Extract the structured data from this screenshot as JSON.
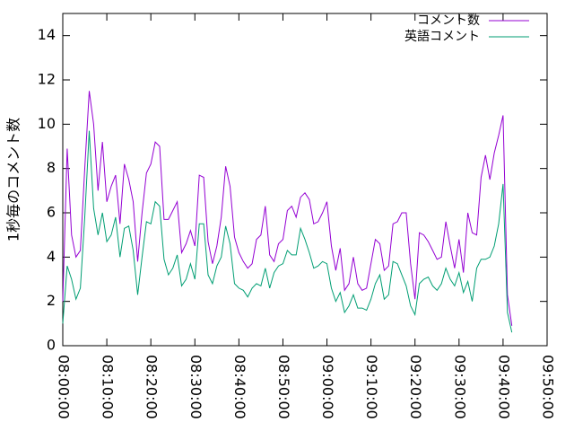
{
  "chart_data": {
    "type": "line",
    "ylabel": "1秒毎のコメント数",
    "x": [
      "08:00:00",
      "08:01:00",
      "08:02:00",
      "08:03:00",
      "08:04:00",
      "08:05:00",
      "08:06:00",
      "08:07:00",
      "08:08:00",
      "08:09:00",
      "08:10:00",
      "08:11:00",
      "08:12:00",
      "08:13:00",
      "08:14:00",
      "08:15:00",
      "08:16:00",
      "08:17:00",
      "08:18:00",
      "08:19:00",
      "08:20:00",
      "08:21:00",
      "08:22:00",
      "08:23:00",
      "08:24:00",
      "08:25:00",
      "08:26:00",
      "08:27:00",
      "08:28:00",
      "08:29:00",
      "08:30:00",
      "08:31:00",
      "08:32:00",
      "08:33:00",
      "08:34:00",
      "08:35:00",
      "08:36:00",
      "08:37:00",
      "08:38:00",
      "08:39:00",
      "08:40:00",
      "08:41:00",
      "08:42:00",
      "08:43:00",
      "08:44:00",
      "08:45:00",
      "08:46:00",
      "08:47:00",
      "08:48:00",
      "08:49:00",
      "08:50:00",
      "08:51:00",
      "08:52:00",
      "08:53:00",
      "08:54:00",
      "08:55:00",
      "08:56:00",
      "08:57:00",
      "08:58:00",
      "08:59:00",
      "09:00:00",
      "09:01:00",
      "09:02:00",
      "09:03:00",
      "09:04:00",
      "09:05:00",
      "09:06:00",
      "09:07:00",
      "09:08:00",
      "09:09:00",
      "09:10:00",
      "09:11:00",
      "09:12:00",
      "09:13:00",
      "09:14:00",
      "09:15:00",
      "09:16:00",
      "09:17:00",
      "09:18:00",
      "09:19:00",
      "09:20:00",
      "09:21:00",
      "09:22:00",
      "09:23:00",
      "09:24:00",
      "09:25:00",
      "09:26:00",
      "09:27:00",
      "09:28:00",
      "09:29:00",
      "09:30:00",
      "09:31:00",
      "09:32:00",
      "09:33:00",
      "09:34:00",
      "09:35:00",
      "09:36:00",
      "09:37:00",
      "09:38:00",
      "09:39:00",
      "09:40:00",
      "09:41:00",
      "09:42:00"
    ],
    "series": [
      {
        "name": "コメント数",
        "color": "#9400d3",
        "values": [
          2.0,
          8.9,
          5.0,
          4.0,
          4.3,
          8.0,
          11.5,
          10.0,
          7.0,
          9.2,
          6.5,
          7.2,
          7.7,
          5.5,
          8.2,
          7.5,
          6.5,
          3.8,
          6.0,
          7.8,
          8.2,
          9.2,
          9.0,
          5.7,
          5.7,
          6.1,
          6.5,
          4.2,
          4.6,
          5.2,
          4.5,
          7.7,
          7.6,
          4.7,
          3.7,
          4.5,
          5.8,
          8.1,
          7.2,
          4.9,
          4.2,
          3.8,
          3.5,
          3.7,
          4.8,
          5.0,
          6.3,
          4.1,
          3.8,
          4.6,
          4.8,
          6.1,
          6.3,
          5.8,
          6.7,
          6.9,
          6.6,
          5.5,
          5.6,
          6.0,
          6.5,
          4.5,
          3.4,
          4.4,
          2.5,
          2.8,
          4.0,
          2.8,
          2.5,
          2.6,
          3.7,
          4.8,
          4.6,
          3.4,
          3.6,
          5.5,
          5.6,
          6.0,
          6.0,
          3.7,
          2.1,
          5.1,
          5.0,
          4.7,
          4.3,
          3.9,
          4.0,
          5.6,
          4.5,
          3.5,
          4.8,
          3.3,
          6.0,
          5.1,
          5.0,
          7.6,
          8.6,
          7.5,
          8.7,
          9.5,
          10.4,
          2.3,
          0.9
        ]
      },
      {
        "name": "英語コメント",
        "color": "#009e73",
        "values": [
          1.0,
          3.6,
          3.0,
          2.1,
          2.6,
          5.8,
          9.7,
          6.2,
          5.0,
          6.0,
          4.7,
          5.0,
          5.8,
          4.0,
          5.3,
          5.4,
          4.3,
          2.3,
          4.0,
          5.6,
          5.5,
          6.5,
          6.3,
          3.9,
          3.2,
          3.5,
          4.1,
          2.7,
          3.0,
          3.7,
          3.0,
          5.5,
          5.5,
          3.2,
          2.8,
          3.6,
          4.0,
          5.4,
          4.6,
          2.8,
          2.6,
          2.5,
          2.2,
          2.6,
          2.8,
          2.7,
          3.5,
          2.6,
          3.3,
          3.6,
          3.7,
          4.3,
          4.1,
          4.1,
          5.3,
          4.8,
          4.2,
          3.5,
          3.6,
          3.8,
          3.7,
          2.6,
          2.0,
          2.4,
          1.5,
          1.8,
          2.3,
          1.7,
          1.7,
          1.6,
          2.1,
          2.8,
          3.2,
          2.1,
          2.3,
          3.8,
          3.7,
          3.2,
          2.7,
          1.8,
          1.4,
          2.8,
          3.0,
          3.1,
          2.7,
          2.5,
          2.8,
          3.5,
          3.0,
          2.7,
          3.3,
          2.4,
          2.9,
          2.0,
          3.5,
          3.9,
          3.9,
          4.0,
          4.5,
          5.5,
          7.3,
          1.5,
          0.6
        ]
      }
    ],
    "xlim": [
      "08:00:00",
      "09:50:00"
    ],
    "xticks": [
      "08:00:00",
      "08:10:00",
      "08:20:00",
      "08:30:00",
      "08:40:00",
      "08:50:00",
      "09:00:00",
      "09:10:00",
      "09:20:00",
      "09:30:00",
      "09:40:00",
      "09:50:00"
    ],
    "ylim": [
      0,
      15
    ],
    "yticks": [
      0,
      2,
      4,
      6,
      8,
      10,
      12,
      14
    ],
    "legend": "top-right"
  }
}
